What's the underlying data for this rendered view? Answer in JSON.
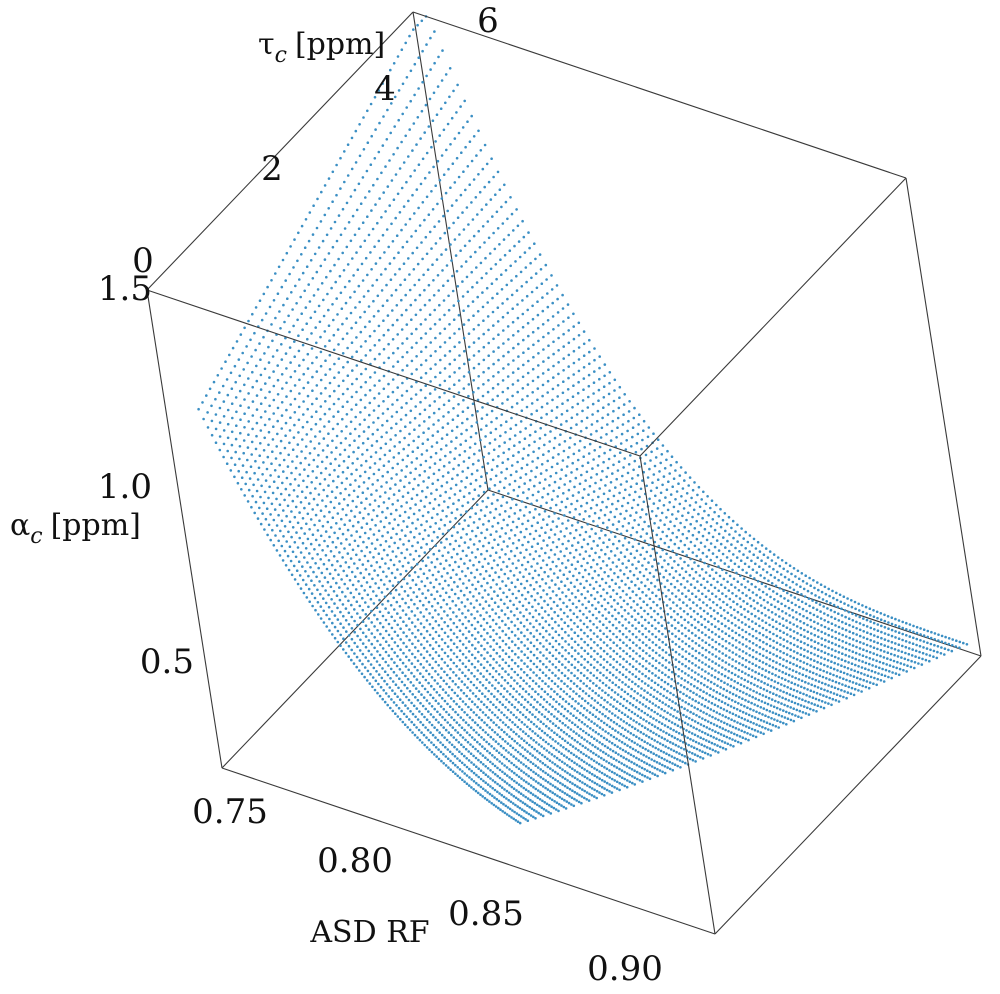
{
  "chart_data": {
    "type": "scatter",
    "title": "",
    "projection": "3d",
    "axes": {
      "x": {
        "label": "ASD RF",
        "range": [
          0.73,
          0.92
        ],
        "ticks": [
          "0.75",
          "0.80",
          "0.85",
          "0.90"
        ]
      },
      "y": {
        "label_symbol": "τ",
        "label_sub": "c",
        "label_unit": "[ppm]",
        "range": [
          0,
          6
        ],
        "ticks": [
          "0",
          "2",
          "4",
          "6"
        ]
      },
      "z": {
        "label_symbol": "α",
        "label_sub": "c",
        "label_unit": "[ppm]",
        "range": [
          0.2,
          1.5
        ],
        "ticks": [
          "0.5",
          "1.0",
          "1.5"
        ]
      }
    },
    "series_color": "#3b8fc4",
    "surface_note": "alpha_c decreases as ASD RF increases; sampled over tau_c from 0 to 6",
    "surface_model": {
      "x_min": 0.735,
      "x_max": 0.915,
      "tau_min": 0.4,
      "tau_max": 6.0,
      "alpha_max": 1.5,
      "alpha_min": 0.2
    },
    "grid": false,
    "legend": "none"
  }
}
